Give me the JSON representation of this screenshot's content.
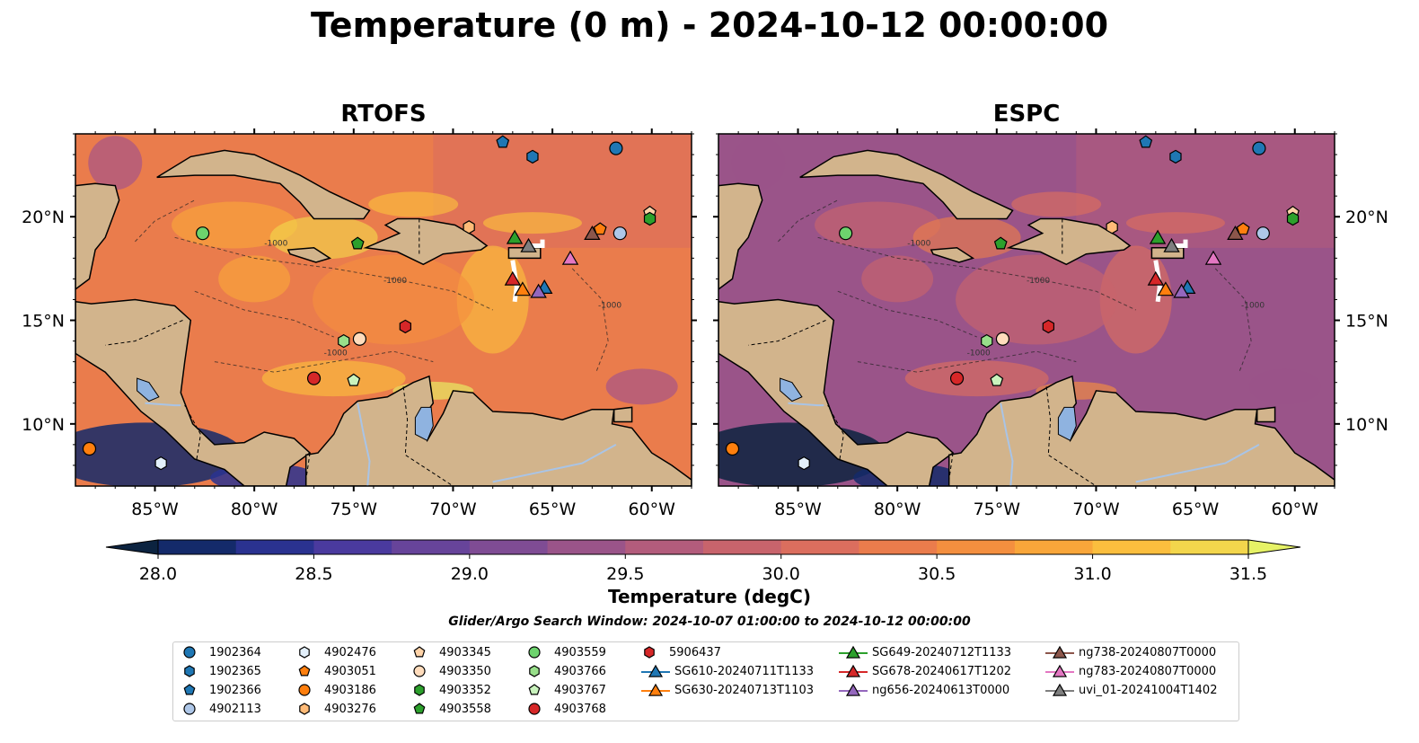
{
  "title": "Temperature (0 m) - 2024-10-12 00:00:00",
  "chart_data": {
    "type": "map",
    "panels": [
      {
        "name": "RTOFS"
      },
      {
        "name": "ESPC"
      }
    ],
    "lon_ticks": [
      "85°W",
      "80°W",
      "75°W",
      "70°W",
      "65°W",
      "60°W"
    ],
    "lat_ticks": [
      "20°N",
      "15°N",
      "10°N"
    ],
    "lon_range": [
      -89,
      -58
    ],
    "lat_range": [
      7,
      24
    ],
    "colorbar": {
      "label": "Temperature (degC)",
      "ticks": [
        "28.0",
        "28.5",
        "29.0",
        "29.5",
        "30.0",
        "30.5",
        "31.0",
        "31.5"
      ],
      "range": [
        28.0,
        31.5
      ],
      "colors": [
        "#0c2340",
        "#142a6a",
        "#2a3290",
        "#4a3a9e",
        "#67449a",
        "#7f4c94",
        "#9a5489",
        "#b35c7c",
        "#c8646c",
        "#db6e5e",
        "#ea7c4c",
        "#f48f3f",
        "#f9a63a",
        "#fbbe3e",
        "#f3d64c",
        "#e6f266"
      ]
    },
    "contour_label": "-1000",
    "search_window": "Glider/Argo Search Window: 2024-10-07 01:00:00 to 2024-10-12 00:00:00",
    "legend": [
      {
        "label": "1902364",
        "shape": "circle",
        "color": "#1f77b4"
      },
      {
        "label": "1902365",
        "shape": "hexagon",
        "color": "#1f77b4"
      },
      {
        "label": "1902366",
        "shape": "pentagon",
        "color": "#1f77b4"
      },
      {
        "label": "4902113",
        "shape": "circle",
        "color": "#aec7e8"
      },
      {
        "label": "4902476",
        "shape": "hexagon",
        "color": "#e3f0fb"
      },
      {
        "label": "4903051",
        "shape": "pentagon",
        "color": "#ff7f0e"
      },
      {
        "label": "4903186",
        "shape": "circle",
        "color": "#ff7f0e"
      },
      {
        "label": "4903276",
        "shape": "hexagon",
        "color": "#ffbb78"
      },
      {
        "label": "4903345",
        "shape": "pentagon",
        "color": "#ffd3a8"
      },
      {
        "label": "4903350",
        "shape": "circle",
        "color": "#ffdcbc"
      },
      {
        "label": "4903352",
        "shape": "hexagon",
        "color": "#2ca02c"
      },
      {
        "label": "4903558",
        "shape": "pentagon",
        "color": "#2ca02c"
      },
      {
        "label": "4903559",
        "shape": "circle",
        "color": "#6dd36d"
      },
      {
        "label": "4903766",
        "shape": "hexagon",
        "color": "#98df8a"
      },
      {
        "label": "4903767",
        "shape": "pentagon",
        "color": "#c9f3bd"
      },
      {
        "label": "4903768",
        "shape": "circle",
        "color": "#d62728"
      },
      {
        "label": "5906437",
        "shape": "hexagon",
        "color": "#d62728"
      },
      {
        "label": "SG610-20240711T1133",
        "shape": "triangle",
        "color": "#1f77b4"
      },
      {
        "label": "SG630-20240713T1103",
        "shape": "triangle",
        "color": "#ff7f0e"
      },
      {
        "label": "SG649-20240712T1133",
        "shape": "triangle",
        "color": "#2ca02c"
      },
      {
        "label": "SG678-20240617T1202",
        "shape": "triangle",
        "color": "#d62728"
      },
      {
        "label": "ng656-20240613T0000",
        "shape": "triangle",
        "color": "#9467bd"
      },
      {
        "label": "ng738-20240807T0000",
        "shape": "triangle",
        "color": "#8c564b"
      },
      {
        "label": "ng783-20240807T0000",
        "shape": "triangle",
        "color": "#e377c2"
      },
      {
        "label": "uvi_01-20241004T1402",
        "shape": "triangle",
        "color": "#7f7f7f"
      }
    ],
    "markers": [
      {
        "id": "1902364",
        "lon": -61.8,
        "lat": 23.3
      },
      {
        "id": "1902365",
        "lon": -66.0,
        "lat": 22.9
      },
      {
        "id": "1902366",
        "lon": -67.5,
        "lat": 23.6
      },
      {
        "id": "4902113",
        "lon": -61.6,
        "lat": 19.2
      },
      {
        "id": "4902476",
        "lon": -84.7,
        "lat": 8.1
      },
      {
        "id": "4903051",
        "lon": -62.6,
        "lat": 19.4
      },
      {
        "id": "4903186",
        "lon": -88.3,
        "lat": 8.8
      },
      {
        "id": "4903276",
        "lon": -69.2,
        "lat": 19.5
      },
      {
        "id": "4903345",
        "lon": -60.1,
        "lat": 20.2
      },
      {
        "id": "4903350",
        "lon": -74.7,
        "lat": 14.1
      },
      {
        "id": "4903352",
        "lon": -60.1,
        "lat": 19.9
      },
      {
        "id": "4903558",
        "lon": -74.8,
        "lat": 18.7
      },
      {
        "id": "4903559",
        "lon": -82.6,
        "lat": 19.2
      },
      {
        "id": "4903766",
        "lon": -75.5,
        "lat": 14.0
      },
      {
        "id": "4903767",
        "lon": -75.0,
        "lat": 12.1
      },
      {
        "id": "4903768",
        "lon": -77.0,
        "lat": 12.2
      },
      {
        "id": "5906437",
        "lon": -72.4,
        "lat": 14.7
      },
      {
        "id": "SG610-20240711T1133",
        "lon": -65.4,
        "lat": 16.6
      },
      {
        "id": "SG630-20240713T1103",
        "lon": -66.5,
        "lat": 16.5
      },
      {
        "id": "SG649-20240712T1133",
        "lon": -66.9,
        "lat": 19.0
      },
      {
        "id": "SG678-20240617T1202",
        "lon": -67.0,
        "lat": 17.0
      },
      {
        "id": "ng656-20240613T0000",
        "lon": -65.7,
        "lat": 16.4
      },
      {
        "id": "ng738-20240807T0000",
        "lon": -63.0,
        "lat": 19.2
      },
      {
        "id": "ng783-20240807T0000",
        "lon": -64.1,
        "lat": 18.0
      },
      {
        "id": "uvi_01-20241004T1402",
        "lon": -66.2,
        "lat": 18.6
      }
    ]
  }
}
